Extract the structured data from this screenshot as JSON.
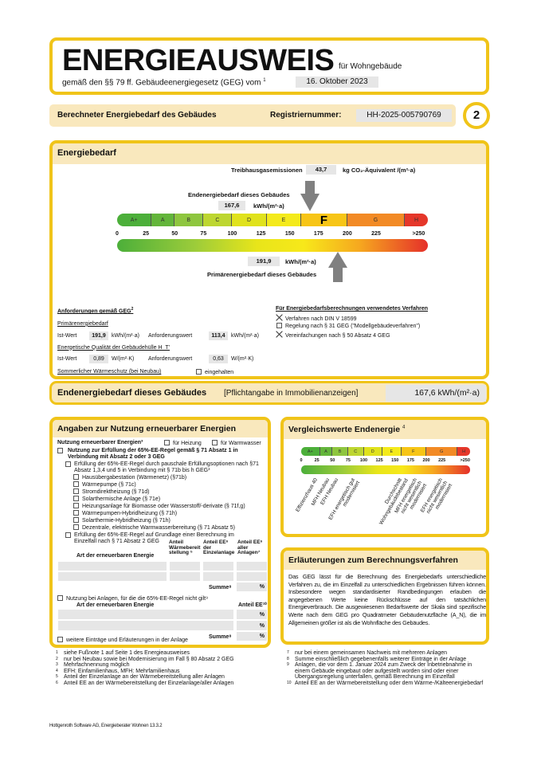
{
  "header": {
    "title": "ENERGIEAUSWEIS",
    "subtitle": "für Wohngebäude",
    "law": "gemäß den §§ 79 ff. Gebäudeenergiegesetz (GEG) vom",
    "law_sup": "1",
    "law_date": "16. Oktober 2023"
  },
  "bar": {
    "label": "Berechneter Energiebedarf des Gebäudes",
    "reg_label": "Registriernummer:",
    "reg_value": "HH-2025-005790769",
    "page": "2"
  },
  "energiebedarf": {
    "title": "Energiebedarf",
    "thg_label": "Treibhausgasemissionen",
    "thg_value": "43,7",
    "thg_unit": "kg CO₂-Äquivalent /(m²·a)",
    "end_label": "Endenergiebedarf dieses Gebäudes",
    "end_value": "167,6",
    "end_unit": "kWh/(m²·a)",
    "prim_label": "Primärenergiebedarf dieses Gebäudes",
    "prim_value": "191,9",
    "prim_unit": "kWh/(m²·a)",
    "classes": [
      "A+",
      "A",
      "B",
      "C",
      "D",
      "E",
      "F",
      "G",
      "H"
    ],
    "current_class": "F",
    "ticks": [
      "0",
      "25",
      "50",
      "75",
      "100",
      "125",
      "150",
      "175",
      "200",
      "225",
      ">250"
    ],
    "end_numeric": 167.6,
    "prim_numeric": 191.9
  },
  "requirements": {
    "title": "Anforderungen gemäß GEG",
    "title_sup": "2",
    "prim_title": "Primärenergiebedarf",
    "ist": "Ist-Wert",
    "prim_ist": "191,9",
    "prim_unit": "kWh/(m²·a)",
    "anf": "Anforderungswert",
    "prim_anf": "113,4",
    "hull_title": "Energetische Qualität der Gebäudehülle H_T'",
    "hull_ist": "0,89",
    "hull_unit": "W/(m²·K)",
    "hull_anf": "0,63",
    "summer": "Sommerlicher Wärmeschutz (bei Neubau)",
    "summer_check": "eingehalten",
    "proc_title": "Für Energiebedarfsberechnungen verwendetes Verfahren",
    "procs": [
      {
        "label": "Verfahren nach DIN V 18599",
        "checked": true
      },
      {
        "label": "Regelung nach § 31 GEG (\"Modellgebäudeverfahren\")",
        "checked": false
      },
      {
        "label": "Vereinfachungen nach § 50 Absatz 4 GEG",
        "checked": true
      }
    ]
  },
  "end_row": {
    "label": "Endenergiebedarf dieses Gebäudes",
    "note": "[Pflichtangabe in Immobilienanzeigen]",
    "value": "167,6 kWh/(m²·a)"
  },
  "renew": {
    "title": "Angaben zur Nutzung erneuerbarer Energien",
    "usage": "Nutzung erneuerbarer Energien³",
    "heat": "für Heizung",
    "water": "für Warmwasser",
    "rule": "Nutzung zur Erfüllung der 65%-EE-Regel gemäß § 71 Absatz 1 in Verbindung mit Absatz 2 oder 3 GEG",
    "flat": "Erfüllung der 65%-EE-Regel durch pauschale Erfüllungsoptionen nach §71 Absatz 1,3,4 und 5 in Verbindung mit § 71b bis h GEG³",
    "options": [
      "Hausübergabestation (Wärmenetz) (§71b)",
      "Wärmepumpe (§ 71c)",
      "Stromdirektheizung (§ 71d)",
      "Solarthermische Anlage (§ 71e)",
      "Heizungsanlage für Biomasse oder Wasserstoff/-derivate (§ 71f,g)",
      "Wärmepumpen-Hybridheizung (§ 71h)",
      "Solarthermie-Hybridheizung (§ 71h)",
      "Dezentrale, elektrische Warmwasserbereitung (§ 71 Absatz 5)"
    ],
    "calc": "Erfüllung der 65%-EE-Regel auf Grundlage einer Berechnung im Einzelfall nach § 71 Absatz 2 GEG",
    "col_art": "Art der erneuerbaren Energie",
    "col_w": "Anteil Wärmebereitstellung ⁵",
    "col_e": "Anteil EE⁶ der Einzelanlage",
    "col_a": "Anteil EE⁶ aller Anlagen⁷",
    "summe": "Summe⁸",
    "pct": "%",
    "other": "Nutzung bei Anlagen, für die die 65%-EE-Regel nicht gilt⁹",
    "col_ee": "Anteil EE¹⁰",
    "more": "weitere Einträge und Erläuterungen in der Anlage"
  },
  "compare": {
    "title": "Vergleichswerte Endenergie",
    "sup": "4",
    "ticks": [
      "0",
      "25",
      "50",
      "75",
      "100",
      "125",
      "150",
      "175",
      "200",
      "225",
      ">250"
    ],
    "refs": [
      {
        "label": "Effizienzhaus 40",
        "value": 20
      },
      {
        "label": "MFH Neubau",
        "value": 40
      },
      {
        "label": "EFH Neubau",
        "value": 50
      },
      {
        "label": "EFH energetisch gut modernisiert",
        "value": 80
      },
      {
        "label": "Durchschnitt Wohngebäudebestand",
        "value": 155
      },
      {
        "label": "MFH energetisch nicht wesentlich modernisiert",
        "value": 180
      },
      {
        "label": "EFH energetisch nicht wesentlich modernisiert",
        "value": 220
      }
    ]
  },
  "explain": {
    "title": "Erläuterungen zum Berechnungsverfahren",
    "text": "Das GEG lässt für die Berechnung des Energiebedarfs unterschiedliche Verfahren zu, die im Einzelfall zu unterschiedlichen Ergebnissen führen können. Insbesondere wegen standardisierter Randbedingungen erlauben die angegebenen Werte keine Rückschlüsse auf den tatsächlichen Energieverbrauch. Die ausgewiesenen Bedarfswerte der Skala sind spezifische Werte nach dem GEG pro Quadratmeter Gebäudenutzfläche (A_N), die im Allgemeinen größer ist als die Wohnfläche des Gebäudes."
  },
  "footnotes_left": [
    [
      "1",
      "siehe Fußnote 1 auf Seite 1 des Energieausweises"
    ],
    [
      "2",
      "nur bei Neubau sowie bei Modernisierung im Fall § 80 Absatz 2 GEG"
    ],
    [
      "3",
      "Mehrfachnennung möglich"
    ],
    [
      "4",
      "EFH: Einfamilienhaus, MFH: Mehrfamilienhaus"
    ],
    [
      "5",
      "Anteil der Einzelanlage an der Wärmebereitstellung aller Anlagen"
    ],
    [
      "6",
      "Anteil EE an der Wärmebereitstellung der Einzelanlage/aller Anlagen"
    ]
  ],
  "footnotes_right": [
    [
      "7",
      "nur bei einem gemeinsamen Nachweis mit mehreren Anlagen"
    ],
    [
      "8",
      "Summe einschließlich gegebenenfalls weiterer Einträge in der Anlage"
    ],
    [
      "9",
      "Anlagen, die vor dem 1. Januar 2024 zum Zweck der Inbetriebnahme in einem Gebäude eingebaut oder aufgestellt worden sind oder einer Übergangsregelung unterfallen, gemäß Berechnung im Einzelfall"
    ],
    [
      "10",
      "Anteil EE an der Wärmebereitstellung oder dem Wärme-/Kälteenergiebedarf"
    ]
  ],
  "software": "Hottgenroth Software AG, Energieberater Wohnen 13.3.2",
  "colors": {
    "border": "#f0c419",
    "band": "#f9e8bd",
    "Aplus": "#4caf3a",
    "A": "#63b53b",
    "B": "#8ec63f",
    "C": "#bdd630",
    "D": "#e0e21c",
    "E": "#f4ea1b",
    "F": "#f7c516",
    "G": "#f28a25",
    "H": "#e5372a"
  }
}
